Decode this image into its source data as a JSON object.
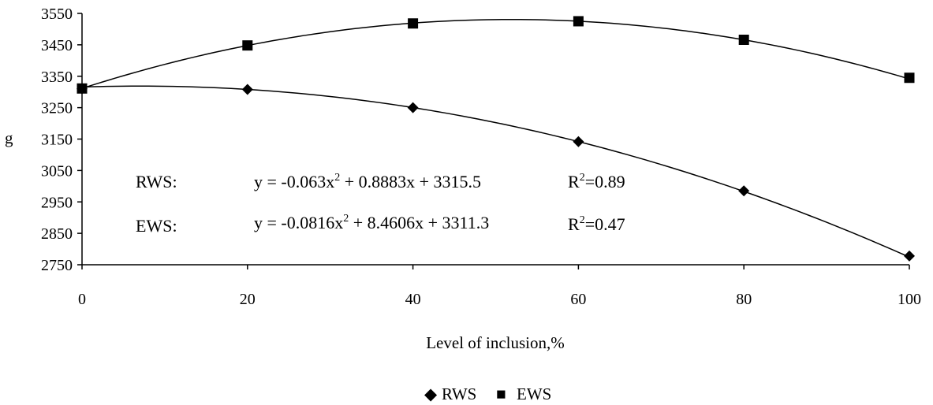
{
  "chart_data": {
    "type": "scatter",
    "title": "",
    "xlabel": "Level of inclusion,%",
    "ylabel": "g",
    "xlim": [
      0,
      100
    ],
    "ylim": [
      2750,
      3550
    ],
    "x_ticks": [
      "0",
      "20",
      "40",
      "60",
      "80",
      "100"
    ],
    "y_ticks": [
      "2750",
      "2850",
      "2950",
      "3050",
      "3150",
      "3250",
      "3350",
      "3450",
      "3550"
    ],
    "grid": false,
    "legend_position": "bottom",
    "x": [
      0,
      20,
      40,
      60,
      80,
      100
    ],
    "series": [
      {
        "name": "RWS",
        "marker": "diamond",
        "color": "#000000",
        "values": [
          3310,
          3308,
          3250,
          3142,
          2985,
          2778
        ],
        "trendline": {
          "type": "polynomial",
          "coefficients": [
            -0.063,
            0.8883,
            3315.5
          ]
        }
      },
      {
        "name": "EWS",
        "marker": "square",
        "color": "#000000",
        "values": [
          3311,
          3448,
          3518,
          3525,
          3466,
          3345
        ],
        "trendline": {
          "type": "polynomial",
          "coefficients": [
            -0.0816,
            8.4606,
            3311.3
          ]
        }
      }
    ],
    "annotations": [
      {
        "label": "RWS:",
        "eq_main": "y = -0.063x",
        "eq_sup": "2",
        "eq_rest": " + 0.8883x + 3315.5",
        "r2_main": "R",
        "r2_sup": "2",
        "r2_rest": "=0.89"
      },
      {
        "label": "EWS:",
        "eq_main": "y = -0.0816x",
        "eq_sup": "2",
        "eq_rest": " + 8.4606x + 3311.3",
        "r2_main": "R",
        "r2_sup": "2",
        "r2_rest": "=0.47"
      }
    ],
    "legend": {
      "items": [
        {
          "name": "RWS",
          "symbol": "◆"
        },
        {
          "name": "EWS",
          "symbol": "■"
        }
      ]
    }
  }
}
